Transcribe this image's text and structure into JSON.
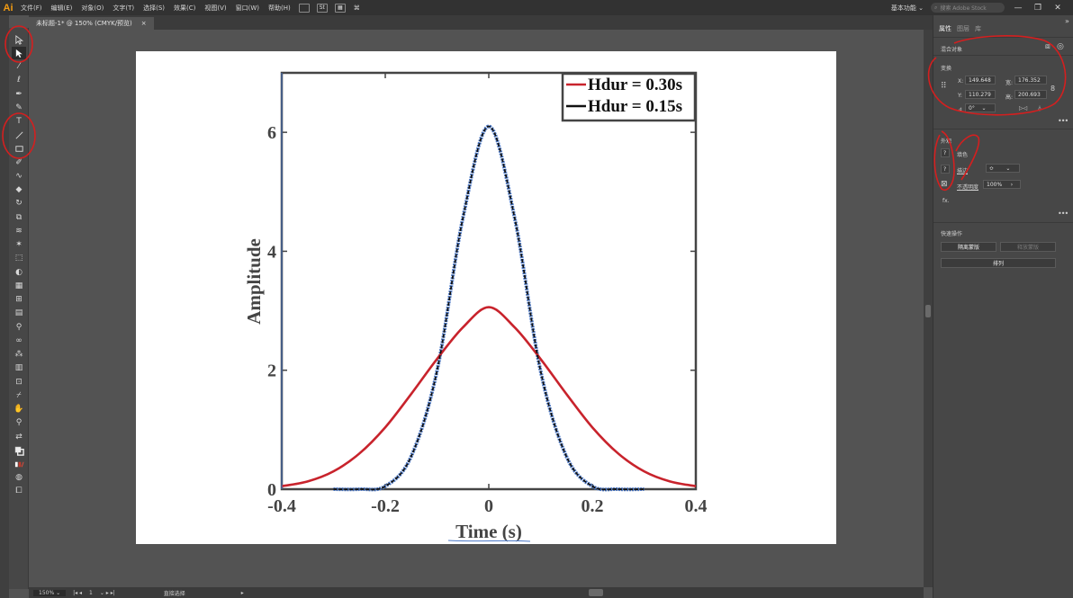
{
  "app": {
    "logo": "Ai",
    "menu": [
      "文件(F)",
      "编辑(E)",
      "对象(O)",
      "文字(T)",
      "选择(S)",
      "效果(C)",
      "视图(V)",
      "窗口(W)",
      "帮助(H)"
    ],
    "workspace": "基本功能",
    "stock_search_placeholder": "搜索 Adobe Stock"
  },
  "document": {
    "tab_label": "未标题-1* @ 150% (CMYK/预览)",
    "close_glyph": "×"
  },
  "statusbar": {
    "zoom": "150%",
    "artboard_index": "1",
    "current_tool": "直接选择"
  },
  "panel": {
    "tabs": [
      "属性",
      "图层",
      "库"
    ],
    "selection_type": "混合对象",
    "transform_title": "变换",
    "x_label": "X:",
    "x_value": "149.648",
    "y_label": "Y:",
    "y_value": "110.279",
    "w_label": "宽:",
    "w_value": "176.352",
    "h_label": "高:",
    "h_value": "200.693",
    "rotate_value": "0°",
    "appearance_title": "外观",
    "fill_label": "填色",
    "stroke_label": "描边",
    "opacity_label": "不透明度",
    "opacity_value": "100%",
    "fx_label": "fx.",
    "quick_actions_title": "快速操作",
    "isolate_button": "隔离蒙版",
    "release_button": "释放蒙版",
    "arrange_button": "排列"
  },
  "colors": {
    "annotation_red": "#d41f1f",
    "series_red": "#c8232c",
    "series_black": "#111111",
    "selection_blue": "#4a78c8"
  },
  "chart_data": {
    "type": "line",
    "title": "",
    "xlabel": "Time (s)",
    "ylabel": "Amplitude",
    "xlim": [
      -0.4,
      0.4
    ],
    "ylim": [
      0,
      7
    ],
    "xticks": [
      "-0.4",
      "-0.2",
      "0",
      "0.2",
      "0.4"
    ],
    "yticks": [
      "0",
      "2",
      "4",
      "6"
    ],
    "legend": {
      "placement": "top-right",
      "entries": [
        "Hdur = 0.30s",
        "Hdur = 0.15s"
      ]
    },
    "series": [
      {
        "name": "Hdur = 0.30s",
        "x": [
          -0.4,
          -0.35,
          -0.3,
          -0.25,
          -0.2,
          -0.15,
          -0.1,
          -0.05,
          0,
          0.05,
          0.1,
          0.15,
          0.2,
          0.25,
          0.3,
          0.35,
          0.4
        ],
        "y": [
          0.05,
          0.13,
          0.3,
          0.6,
          1.04,
          1.6,
          2.19,
          2.72,
          3.06,
          2.72,
          2.19,
          1.6,
          1.04,
          0.6,
          0.3,
          0.13,
          0.05
        ]
      },
      {
        "name": "Hdur = 0.15s",
        "x": [
          -0.3,
          -0.25,
          -0.2,
          -0.15,
          -0.1,
          -0.05,
          0,
          0.05,
          0.1,
          0.15,
          0.2,
          0.25,
          0.3
        ],
        "y": [
          0.0,
          0.0,
          0.05,
          0.55,
          1.99,
          4.56,
          6.1,
          4.56,
          1.99,
          0.55,
          0.05,
          0.0,
          0.0
        ]
      }
    ]
  }
}
